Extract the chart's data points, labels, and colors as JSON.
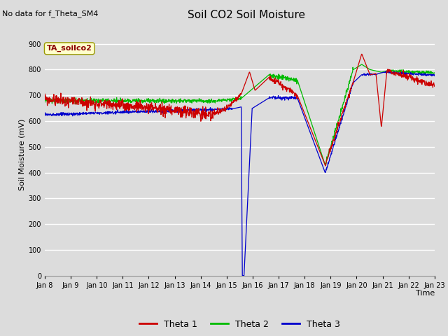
{
  "title": "Soil CO2 Soil Moisture",
  "no_data_text": "No data for f_Theta_SM4",
  "annotation_box": "TA_soilco2",
  "ylabel": "Soil Moisture (mV)",
  "xlabel": "Time",
  "ylim": [
    0,
    940
  ],
  "yticks": [
    0,
    100,
    200,
    300,
    400,
    500,
    600,
    700,
    800,
    900
  ],
  "x_labels": [
    "Jan 8",
    "Jan 9",
    "Jan 10",
    "Jan 11",
    "Jan 12",
    "Jan 13",
    "Jan 14",
    "Jan 15",
    "Jan 16",
    "Jan 17",
    "Jan 18",
    "Jan 19",
    "Jan 20",
    "Jan 21",
    "Jan 22",
    "Jan 23"
  ],
  "colors": {
    "theta1": "#CC0000",
    "theta2": "#00BB00",
    "theta3": "#0000CC",
    "background": "#DCDCDC",
    "grid": "#FFFFFF",
    "annotation_bg": "#FFFFCC",
    "annotation_border": "#999900"
  },
  "legend": [
    {
      "label": "Theta 1",
      "color": "#CC0000"
    },
    {
      "label": "Theta 2",
      "color": "#00BB00"
    },
    {
      "label": "Theta 3",
      "color": "#0000CC"
    }
  ]
}
